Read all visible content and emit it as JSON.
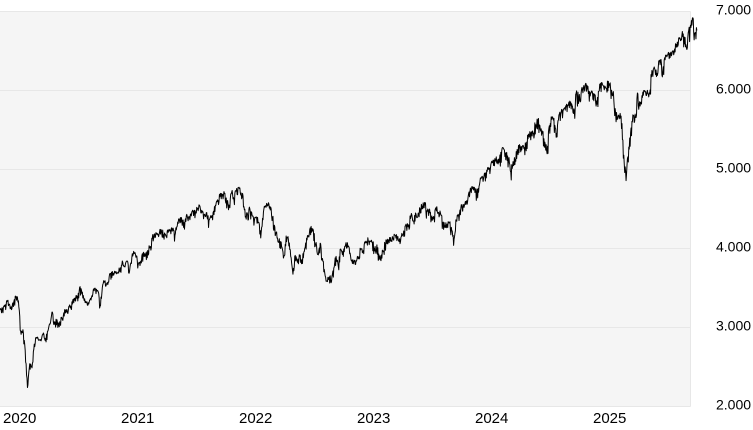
{
  "chart_data": {
    "type": "line",
    "title": "",
    "legend": null,
    "grid": "horizontal",
    "plot_bg_color": "#f5f5f5",
    "grid_color": "#e7e7e7",
    "line_color": "#000000",
    "label_color": "#000000",
    "y_axis": {
      "side": "right",
      "ylim": [
        2000,
        7000
      ],
      "ticks": [
        {
          "label": "7.000",
          "value": 7000
        },
        {
          "label": "6.000",
          "value": 6000
        },
        {
          "label": "5.000",
          "value": 5000
        },
        {
          "label": "4.000",
          "value": 4000
        },
        {
          "label": "3.000",
          "value": 3000
        },
        {
          "label": "2.000",
          "value": 2000
        }
      ]
    },
    "x_axis": {
      "ticks": [
        {
          "label": "2020",
          "year": 2020
        },
        {
          "label": "2021",
          "year": 2021
        },
        {
          "label": "2022",
          "year": 2022
        },
        {
          "label": "2023",
          "year": 2023
        },
        {
          "label": "2024",
          "year": 2024
        },
        {
          "label": "2025",
          "year": 2025
        }
      ],
      "data_start": 2019.98077,
      "data_step_years": 0.01923,
      "data_end": 2025.885
    },
    "series": [
      {
        "name": "index-price-weekly",
        "values": [
          3223,
          3235,
          3265,
          3330,
          3295,
          3226,
          3328,
          3380,
          3338,
          2954,
          2972,
          2711,
          2240,
          2541,
          2489,
          2790,
          2875,
          2837,
          2831,
          2930,
          2864,
          2955,
          3044,
          3194,
          3041,
          3098,
          3009,
          3130,
          3185,
          3225,
          3216,
          3271,
          3351,
          3373,
          3397,
          3508,
          3427,
          3341,
          3319,
          3298,
          3348,
          3477,
          3484,
          3465,
          3270,
          3509,
          3585,
          3558,
          3638,
          3699,
          3663,
          3709,
          3703,
          3756,
          3825,
          3768,
          3841,
          3714,
          3887,
          3935,
          3907,
          3811,
          3842,
          3943,
          3913,
          3975,
          4020,
          4129,
          4185,
          4180,
          4181,
          4233,
          4174,
          4156,
          4204,
          4230,
          4247,
          4166,
          4281,
          4352,
          4370,
          4327,
          4412,
          4395,
          4437,
          4468,
          4442,
          4509,
          4535,
          4459,
          4433,
          4455,
          4357,
          4391,
          4471,
          4545,
          4605,
          4698,
          4683,
          4698,
          4594,
          4538,
          4712,
          4621,
          4726,
          4766,
          4677,
          4663,
          4398,
          4432,
          4501,
          4419,
          4349,
          4385,
          4329,
          4204,
          4463,
          4543,
          4546,
          4488,
          4393,
          4272,
          4131,
          4123,
          4024,
          3901,
          4158,
          4109,
          3901,
          3675,
          3912,
          3825,
          3899,
          3863,
          3962,
          4130,
          4145,
          4280,
          4228,
          4058,
          3924,
          4067,
          3873,
          3693,
          3586,
          3640,
          3583,
          3753,
          3901,
          3771,
          3993,
          3965,
          4026,
          4072,
          3934,
          3852,
          3845,
          3840,
          3895,
          3999,
          3973,
          4071,
          4136,
          4090,
          4079,
          3970,
          4046,
          3862,
          3917,
          3971,
          4109,
          4105,
          4138,
          4134,
          4169,
          4136,
          4124,
          4192,
          4205,
          4282,
          4299,
          4410,
          4348,
          4450,
          4399,
          4505,
          4536,
          4582,
          4478,
          4464,
          4370,
          4406,
          4516,
          4457,
          4450,
          4320,
          4288,
          4308,
          4328,
          4224,
          4117,
          4358,
          4415,
          4514,
          4559,
          4595,
          4604,
          4719,
          4755,
          4770,
          4697,
          4784,
          4891,
          4891,
          4959,
          5027,
          5006,
          5089,
          5137,
          5124,
          5117,
          5234,
          5254,
          5204,
          5123,
          4967,
          5100,
          5128,
          5223,
          5303,
          5278,
          5277,
          5347,
          5432,
          5465,
          5460,
          5567,
          5615,
          5505,
          5459,
          5347,
          5200,
          5554,
          5635,
          5648,
          5408,
          5626,
          5703,
          5738,
          5751,
          5815,
          5865,
          5808,
          5729,
          5996,
          5871,
          5969,
          6032,
          6090,
          6051,
          5931,
          5971,
          5942,
          5827,
          5997,
          6101,
          6041,
          6026,
          6115,
          6013,
          5955,
          5770,
          5639,
          5668,
          5581,
          5074,
          4940,
          5283,
          5525,
          5687,
          5660,
          5958,
          5803,
          5912,
          6000,
          5977,
          5968,
          6173,
          6279,
          6260,
          6297,
          6389,
          6238,
          6389,
          6450,
          6467,
          6460,
          6482,
          6584,
          6664,
          6644,
          6716,
          6553,
          6664,
          6792,
          6910,
          6728,
          6760
        ]
      }
    ]
  }
}
